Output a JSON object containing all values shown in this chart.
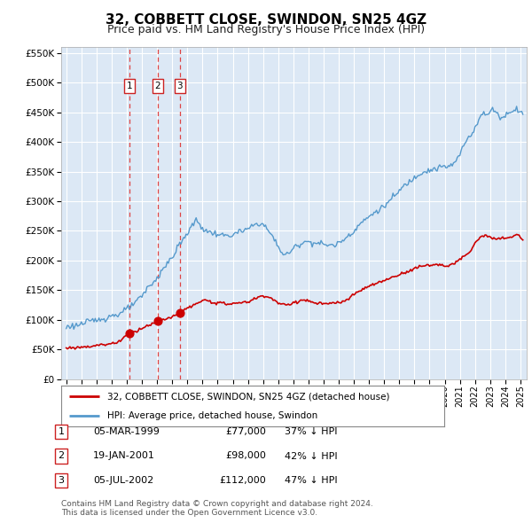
{
  "title": "32, COBBETT CLOSE, SWINDON, SN25 4GZ",
  "subtitle": "Price paid vs. HM Land Registry's House Price Index (HPI)",
  "plot_bg": "#dce8f5",
  "red_line_color": "#cc0000",
  "blue_line_color": "#5599cc",
  "ylim": [
    0,
    560000
  ],
  "yticks": [
    0,
    50000,
    100000,
    150000,
    200000,
    250000,
    300000,
    350000,
    400000,
    450000,
    500000,
    550000
  ],
  "transaction_prices": [
    77000,
    98000,
    112000
  ],
  "transaction_info": [
    {
      "label": "1",
      "date": "05-MAR-1999",
      "price": "£77,000",
      "pct": "37% ↓ HPI"
    },
    {
      "label": "2",
      "date": "19-JAN-2001",
      "price": "£98,000",
      "pct": "42% ↓ HPI"
    },
    {
      "label": "3",
      "date": "05-JUL-2002",
      "price": "£112,000",
      "pct": "47% ↓ HPI"
    }
  ],
  "legend_entries": [
    "32, COBBETT CLOSE, SWINDON, SN25 4GZ (detached house)",
    "HPI: Average price, detached house, Swindon"
  ],
  "footnote": "Contains HM Land Registry data © Crown copyright and database right 2024.\nThis data is licensed under the Open Government Licence v3.0.",
  "title_fontsize": 11,
  "subtitle_fontsize": 9
}
